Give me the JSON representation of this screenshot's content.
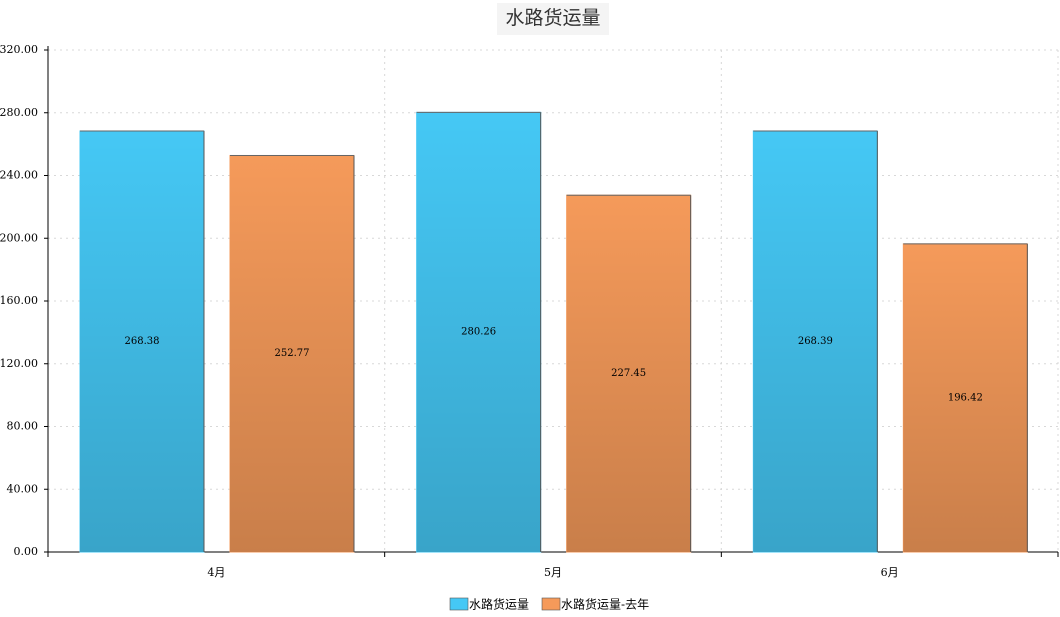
{
  "chart_data": {
    "type": "bar",
    "title": "水路货运量",
    "categories": [
      "4月",
      "5月",
      "6月"
    ],
    "series": [
      {
        "name": "水路货运量",
        "color": "#45c8f5",
        "values": [
          268.38,
          280.26,
          268.39
        ]
      },
      {
        "name": "水路货运量-去年",
        "color": "#f59a5a",
        "values": [
          252.77,
          227.45,
          196.42
        ]
      }
    ],
    "ylim": [
      0,
      320
    ],
    "yticks": [
      {
        "value": 0,
        "label": "0.00"
      },
      {
        "value": 40,
        "label": "40.00"
      },
      {
        "value": 80,
        "label": "80.00"
      },
      {
        "value": 120,
        "label": "120.00"
      },
      {
        "value": 160,
        "label": "160.00"
      },
      {
        "value": 200,
        "label": "200.00"
      },
      {
        "value": 240,
        "label": "240.00"
      },
      {
        "value": 280,
        "label": "280.00"
      },
      {
        "value": 320,
        "label": "320.00"
      }
    ],
    "grid": true,
    "legend": "bottom"
  }
}
